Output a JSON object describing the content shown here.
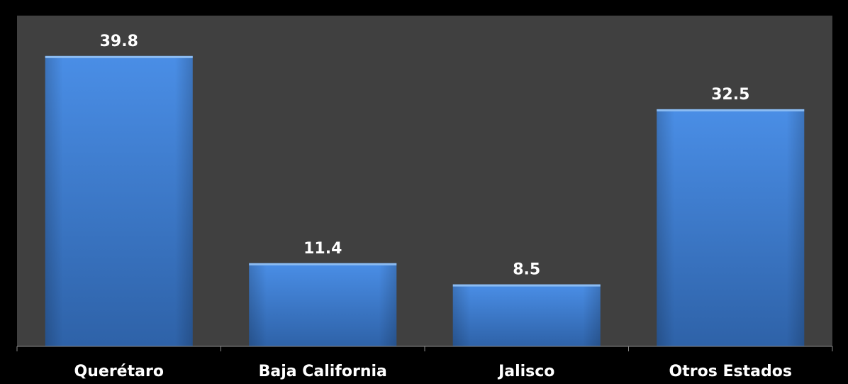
{
  "chart_data": {
    "type": "bar",
    "title": "",
    "xlabel": "",
    "ylabel": "",
    "categories": [
      "Querétaro",
      "Baja California",
      "Jalisco",
      "Otros Estados"
    ],
    "values": [
      39.8,
      11.4,
      8.5,
      32.5
    ],
    "value_labels": [
      "39.8",
      "11.4",
      "8.5",
      "32.5"
    ],
    "ylim": [
      0,
      45
    ],
    "grid": false,
    "legend": "none",
    "colors": {
      "page_background": "#000000",
      "plot_background": "#404040",
      "bar_fill_top": "#4a8ee6",
      "bar_fill_bottom": "#2e62a8",
      "bar_edge": "#8cbcf2",
      "text": "#ffffff",
      "axis": "#8a8a8a"
    }
  }
}
